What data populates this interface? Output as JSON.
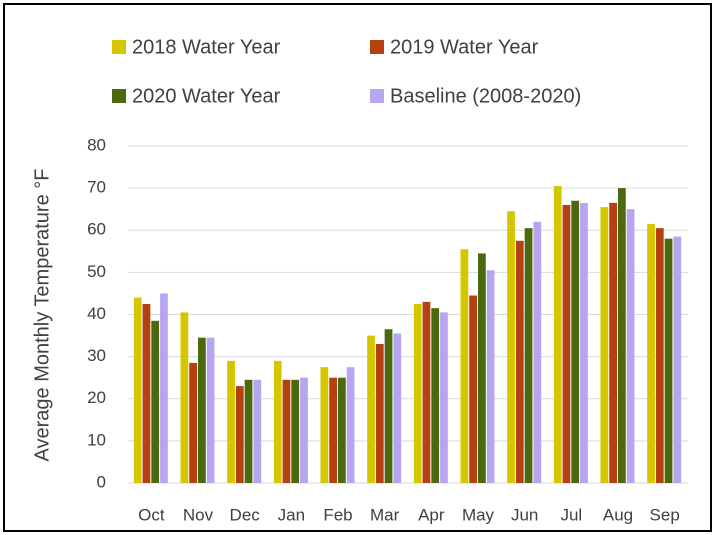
{
  "chart_data": {
    "type": "bar",
    "y_label": "Average Monthly Temperature °F",
    "categories": [
      "Oct",
      "Nov",
      "Dec",
      "Jan",
      "Feb",
      "Mar",
      "Apr",
      "May",
      "Jun",
      "Jul",
      "Aug",
      "Sep"
    ],
    "series": [
      {
        "name": "2018 Water Year",
        "color": "#d6c600",
        "values": [
          44,
          40.5,
          29,
          29,
          27.5,
          35,
          42.5,
          55.5,
          64.5,
          70.5,
          65.5,
          61.5
        ]
      },
      {
        "name": "2019 Water Year",
        "color": "#b4410f",
        "values": [
          42.5,
          28.5,
          23,
          24.5,
          25,
          33,
          43,
          44.5,
          57.5,
          66,
          66.5,
          60.5
        ]
      },
      {
        "name": "2020 Water Year",
        "color": "#4b6a10",
        "values": [
          38.5,
          34.5,
          24.5,
          24.5,
          25,
          36.5,
          41.5,
          54.5,
          60.5,
          67,
          70,
          58
        ]
      },
      {
        "name": "Baseline (2008-2020)",
        "color": "#b8a5f0",
        "values": [
          45,
          34.5,
          24.5,
          25,
          27.5,
          35.5,
          40.5,
          50.5,
          62,
          66.5,
          65,
          58.5
        ]
      }
    ],
    "ylim": [
      0,
      80
    ],
    "yticks": [
      0,
      10,
      20,
      30,
      40,
      50,
      60,
      70,
      80
    ],
    "grid": true
  }
}
